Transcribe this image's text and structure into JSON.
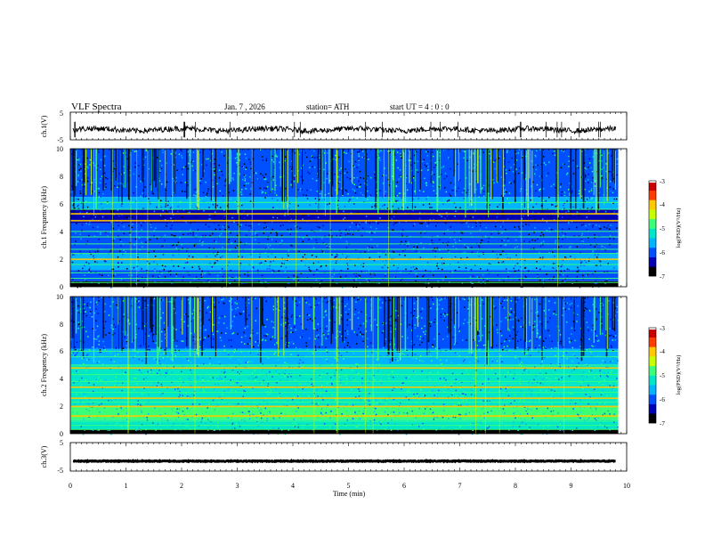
{
  "header": {
    "title": "VLF  Spectra",
    "date": "Jan.  7  , 2026",
    "station": "station= ATH",
    "start_ut": "start  UT  =   4  : 0  : 0"
  },
  "chart_data": {
    "type": "heatmap",
    "title": "VLF  Spectra",
    "xlabel": "Time  (min)",
    "xlim": [
      0,
      10
    ],
    "x_ticks": [
      "0",
      "1",
      "2",
      "3",
      "4",
      "5",
      "6",
      "7",
      "8",
      "9",
      "10"
    ],
    "data_extent_min": 9.85,
    "panels": [
      {
        "name": "ch1-waveform",
        "type": "line",
        "ylabel": "ch.1(V)",
        "ylim": [
          -5,
          5
        ],
        "y_ticks": [
          "5",
          "-5"
        ],
        "level": -1.3,
        "noise": 1.0
      },
      {
        "name": "ch1-spectrogram",
        "type": "heatmap",
        "ylabel": "ch.1 Frequency  (kHz)",
        "ylim": [
          0,
          10
        ],
        "y_ticks": [
          "0",
          "2",
          "4",
          "6",
          "8",
          "10"
        ],
        "bands_khz": [
          0.3,
          0.6,
          1.0,
          1.6,
          2.0,
          2.4,
          2.7,
          3.1,
          3.6,
          4.0,
          4.8,
          5.3,
          5.6,
          6.1
        ],
        "strong_bands_khz": [
          2.0,
          4.8,
          5.3
        ],
        "colorbar": {
          "label": "log(PSD)(V²/Hz)",
          "range": [
            -7,
            -3
          ],
          "ticks": [
            "-3",
            "-4",
            "-5",
            "-6",
            "-7"
          ]
        }
      },
      {
        "name": "ch2-spectrogram",
        "type": "heatmap",
        "ylabel": "ch.2 Frequency  (kHz)",
        "ylim": [
          0,
          10
        ],
        "y_ticks": [
          "0",
          "2",
          "4",
          "6",
          "8",
          "10"
        ],
        "bands_khz": [
          0.3,
          0.6,
          0.9,
          1.3,
          1.7,
          2.0,
          2.3,
          2.6,
          3.0,
          3.4,
          3.8,
          4.3,
          4.8,
          5.0,
          5.6,
          6.0
        ],
        "strong_bands_khz": [
          1.3,
          2.0,
          2.6,
          3.4,
          4.8
        ],
        "colorbar": {
          "label": "log(PSD)(V²/Hz)",
          "range": [
            -7,
            -3
          ],
          "ticks": [
            "-3",
            "-4",
            "-5",
            "-6",
            "-7"
          ]
        }
      },
      {
        "name": "ch3-waveform",
        "type": "line",
        "ylabel": "ch.3(V)",
        "ylim": [
          -5,
          5
        ],
        "y_ticks": [
          "5",
          "-5"
        ],
        "level": -1.5,
        "noise": 0.15
      }
    ],
    "colormap": [
      "#000000",
      "#0000b4",
      "#0050ff",
      "#00b4ff",
      "#00e6c8",
      "#3cff78",
      "#c8ff00",
      "#ffc800",
      "#ff3c00",
      "#c80000",
      "#ffffff"
    ]
  }
}
